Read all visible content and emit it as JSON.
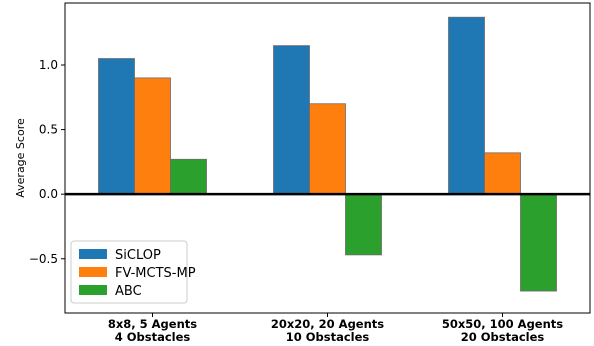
{
  "chart_data": {
    "type": "bar",
    "title": "",
    "xlabel": "",
    "ylabel": "Average Score",
    "categories": [
      [
        "8x8, 5 Agents",
        "4 Obstacles"
      ],
      [
        "20x20, 20 Agents",
        "10 Obstacles"
      ],
      [
        "50x50, 100 Agents",
        "20 Obstacles"
      ]
    ],
    "series": [
      {
        "name": "SiCLOP",
        "color": "#1f77b4",
        "values": [
          1.05,
          1.15,
          1.37
        ]
      },
      {
        "name": "FV-MCTS-MP",
        "color": "#ff7f0e",
        "values": [
          0.9,
          0.7,
          0.32
        ]
      },
      {
        "name": "ABC",
        "color": "#2ca02c",
        "values": [
          0.27,
          -0.47,
          -0.75
        ]
      }
    ],
    "yticks": [
      "−0.5",
      "0.0",
      "0.5",
      "1.0"
    ],
    "ytick_values": [
      -0.5,
      0.0,
      0.5,
      1.0
    ],
    "ylim": [
      -0.92,
      1.48
    ],
    "grid": false,
    "zero_line": true,
    "legend_position": "lower-left"
  }
}
